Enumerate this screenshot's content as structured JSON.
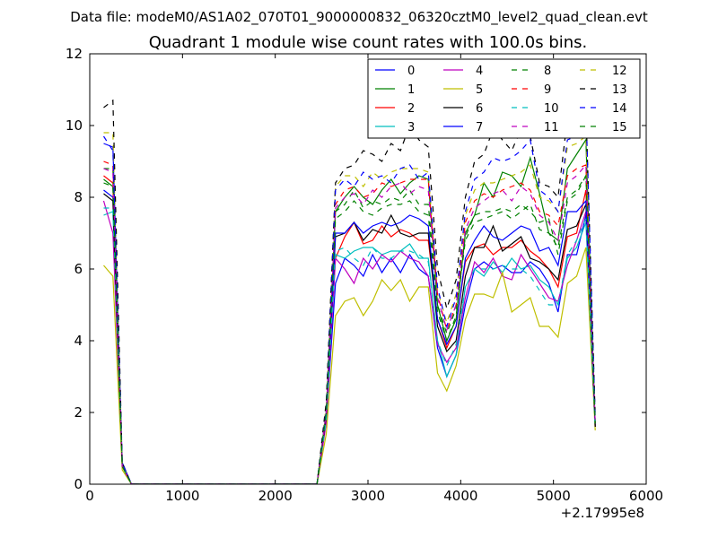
{
  "chart_data": {
    "type": "line",
    "suptitle": "Data file: modeM0/AS1A02_070T01_9000000832_06320cztM0_level2_quad_clean.evt",
    "title": "Quadrant 1 module wise count rates with 100.0s bins.",
    "xlabel": "",
    "ylabel": "",
    "x_offset_label": "+2.17995e8",
    "xlim": [
      0,
      6000
    ],
    "ylim": [
      0,
      12
    ],
    "xticks": [
      0,
      1000,
      2000,
      3000,
      4000,
      5000,
      6000
    ],
    "yticks": [
      0,
      2,
      4,
      6,
      8,
      10,
      12
    ],
    "x": [
      150,
      250,
      350,
      450,
      550,
      650,
      750,
      850,
      950,
      1050,
      1150,
      1250,
      1350,
      1450,
      1550,
      1650,
      1750,
      1850,
      1950,
      2050,
      2150,
      2250,
      2350,
      2450,
      2550,
      2650,
      2750,
      2850,
      2950,
      3050,
      3150,
      3250,
      3350,
      3450,
      3550,
      3650,
      3750,
      3850,
      3950,
      4050,
      4150,
      4250,
      4350,
      4450,
      4550,
      4650,
      4750,
      4850,
      4950,
      5050,
      5150,
      5250,
      5350,
      5450
    ],
    "legend_position": "top-right",
    "series": [
      {
        "name": "0",
        "color": "#0000ff",
        "dash": "solid",
        "values": [
          8.2,
          8.0,
          0.5,
          0,
          0,
          0,
          0,
          0,
          0,
          0,
          0,
          0,
          0,
          0,
          0,
          0,
          0,
          0,
          0,
          0,
          0,
          0,
          0,
          0,
          1.8,
          5.6,
          6.3,
          6.1,
          5.8,
          6.4,
          5.9,
          6.3,
          5.9,
          6.4,
          6.0,
          5.8,
          3.8,
          3.0,
          3.6,
          5.0,
          6.0,
          6.2,
          6.0,
          6.1,
          5.9,
          5.9,
          6.2,
          6.0,
          5.6,
          4.8,
          6.4,
          6.4,
          7.5,
          1.7
        ]
      },
      {
        "name": "1",
        "color": "#008000",
        "dash": "solid",
        "values": [
          8.5,
          8.3,
          0.5,
          0,
          0,
          0,
          0,
          0,
          0,
          0,
          0,
          0,
          0,
          0,
          0,
          0,
          0,
          0,
          0,
          0,
          0,
          0,
          0,
          0,
          2.0,
          7.6,
          8.0,
          8.3,
          8.0,
          7.8,
          8.2,
          8.5,
          8.1,
          8.4,
          8.6,
          8.5,
          5.0,
          4.0,
          4.6,
          7.0,
          7.5,
          8.4,
          8.0,
          8.7,
          8.6,
          8.3,
          9.1,
          8.1,
          7.0,
          6.8,
          8.8,
          9.2,
          9.6,
          1.6
        ]
      },
      {
        "name": "2",
        "color": "#ff0000",
        "dash": "solid",
        "values": [
          8.6,
          8.4,
          0.5,
          0,
          0,
          0,
          0,
          0,
          0,
          0,
          0,
          0,
          0,
          0,
          0,
          0,
          0,
          0,
          0,
          0,
          0,
          0,
          0,
          0,
          1.9,
          6.3,
          6.9,
          7.3,
          6.7,
          6.8,
          7.2,
          6.9,
          7.1,
          7.0,
          6.8,
          6.8,
          4.6,
          3.8,
          4.4,
          6.2,
          6.6,
          6.7,
          6.4,
          6.6,
          6.6,
          6.8,
          6.5,
          6.3,
          6.0,
          5.5,
          6.9,
          7.0,
          8.2,
          1.6
        ]
      },
      {
        "name": "3",
        "color": "#00bfbf",
        "dash": "solid",
        "values": [
          7.5,
          7.6,
          0.5,
          0,
          0,
          0,
          0,
          0,
          0,
          0,
          0,
          0,
          0,
          0,
          0,
          0,
          0,
          0,
          0,
          0,
          0,
          0,
          0,
          0,
          1.8,
          6.4,
          6.3,
          6.5,
          6.6,
          6.6,
          6.4,
          6.5,
          6.5,
          6.7,
          6.3,
          6.3,
          4.0,
          3.0,
          3.6,
          5.5,
          6.0,
          5.8,
          6.2,
          5.9,
          6.3,
          6.0,
          6.1,
          5.7,
          5.5,
          5.0,
          6.3,
          6.6,
          7.3,
          1.6
        ]
      },
      {
        "name": "4",
        "color": "#bf00bf",
        "dash": "solid",
        "values": [
          7.9,
          7.0,
          0.5,
          0,
          0,
          0,
          0,
          0,
          0,
          0,
          0,
          0,
          0,
          0,
          0,
          0,
          0,
          0,
          0,
          0,
          0,
          0,
          0,
          0,
          1.7,
          6.3,
          6.0,
          5.6,
          6.3,
          6.0,
          6.4,
          6.2,
          6.5,
          6.3,
          6.2,
          5.8,
          3.9,
          3.4,
          3.8,
          5.2,
          6.2,
          5.9,
          6.3,
          5.8,
          5.7,
          6.4,
          6.0,
          5.6,
          5.2,
          5.1,
          6.1,
          6.8,
          7.6,
          1.6
        ]
      },
      {
        "name": "5",
        "color": "#bfbf00",
        "dash": "solid",
        "values": [
          6.1,
          5.8,
          0.4,
          0,
          0,
          0,
          0,
          0,
          0,
          0,
          0,
          0,
          0,
          0,
          0,
          0,
          0,
          0,
          0,
          0,
          0,
          0,
          0,
          0,
          1.4,
          4.7,
          5.1,
          5.2,
          4.7,
          5.1,
          5.7,
          5.4,
          5.7,
          5.1,
          5.5,
          5.5,
          3.1,
          2.6,
          3.3,
          4.6,
          5.3,
          5.3,
          5.2,
          5.9,
          4.8,
          5.0,
          5.2,
          4.4,
          4.4,
          4.1,
          5.6,
          5.8,
          6.6,
          1.5
        ]
      },
      {
        "name": "6",
        "color": "#000000",
        "dash": "solid",
        "values": [
          8.1,
          7.9,
          0.5,
          0,
          0,
          0,
          0,
          0,
          0,
          0,
          0,
          0,
          0,
          0,
          0,
          0,
          0,
          0,
          0,
          0,
          0,
          0,
          0,
          0,
          1.9,
          6.9,
          7.0,
          7.3,
          6.8,
          7.1,
          7.0,
          7.5,
          7.0,
          6.9,
          7.0,
          7.0,
          4.4,
          3.7,
          4.0,
          5.8,
          6.6,
          6.6,
          7.2,
          6.5,
          6.7,
          6.9,
          6.3,
          6.2,
          6.0,
          5.7,
          7.1,
          7.2,
          7.8,
          1.6
        ]
      },
      {
        "name": "7",
        "color": "#0000ff",
        "dash": "solid",
        "values": [
          9.5,
          9.4,
          0.6,
          0,
          0,
          0,
          0,
          0,
          0,
          0,
          0,
          0,
          0,
          0,
          0,
          0,
          0,
          0,
          0,
          0,
          0,
          0,
          0,
          0,
          2.0,
          7.0,
          7.0,
          7.3,
          7.0,
          7.2,
          7.3,
          7.2,
          7.3,
          7.5,
          7.4,
          7.2,
          4.6,
          3.9,
          4.4,
          6.3,
          6.8,
          7.2,
          6.9,
          6.8,
          7.0,
          7.2,
          7.1,
          6.5,
          6.6,
          6.1,
          7.6,
          7.6,
          7.9,
          1.7
        ]
      },
      {
        "name": "8",
        "color": "#008000",
        "dash": "dashed",
        "values": [
          8.8,
          8.8,
          0.5,
          0,
          0,
          0,
          0,
          0,
          0,
          0,
          0,
          0,
          0,
          0,
          0,
          0,
          0,
          0,
          0,
          0,
          0,
          0,
          0,
          0,
          2.0,
          7.6,
          7.8,
          8.2,
          7.7,
          7.9,
          7.8,
          8.0,
          7.9,
          8.2,
          7.8,
          7.8,
          5.0,
          4.2,
          4.9,
          6.9,
          7.5,
          7.6,
          7.6,
          7.7,
          7.6,
          7.8,
          7.6,
          7.3,
          7.4,
          6.4,
          7.9,
          8.1,
          8.6,
          1.7
        ]
      },
      {
        "name": "9",
        "color": "#ff0000",
        "dash": "dashed",
        "values": [
          9.0,
          8.9,
          0.5,
          0,
          0,
          0,
          0,
          0,
          0,
          0,
          0,
          0,
          0,
          0,
          0,
          0,
          0,
          0,
          0,
          0,
          0,
          0,
          0,
          0,
          2.1,
          7.8,
          8.2,
          8.3,
          8.0,
          8.1,
          8.4,
          8.3,
          8.4,
          8.5,
          8.5,
          8.5,
          5.3,
          4.3,
          5.0,
          7.3,
          7.9,
          8.1,
          8.0,
          8.2,
          8.3,
          8.4,
          8.2,
          7.6,
          7.5,
          7.2,
          8.6,
          8.8,
          8.9,
          1.7
        ]
      },
      {
        "name": "10",
        "color": "#00bfbf",
        "dash": "dashed",
        "values": [
          7.7,
          7.7,
          0.5,
          0,
          0,
          0,
          0,
          0,
          0,
          0,
          0,
          0,
          0,
          0,
          0,
          0,
          0,
          0,
          0,
          0,
          0,
          0,
          0,
          0,
          1.8,
          6.5,
          6.6,
          6.3,
          6.1,
          6.6,
          6.3,
          6.3,
          6.5,
          6.5,
          6.4,
          6.2,
          4.0,
          3.3,
          3.9,
          5.5,
          6.0,
          6.0,
          6.0,
          6.1,
          6.0,
          6.0,
          5.8,
          5.4,
          5.0,
          5.0,
          6.4,
          6.8,
          7.4,
          1.6
        ]
      },
      {
        "name": "11",
        "color": "#bf00bf",
        "dash": "dashed",
        "values": [
          8.8,
          8.7,
          0.5,
          0,
          0,
          0,
          0,
          0,
          0,
          0,
          0,
          0,
          0,
          0,
          0,
          0,
          0,
          0,
          0,
          0,
          0,
          0,
          0,
          0,
          2.0,
          7.7,
          8.0,
          8.1,
          7.8,
          8.2,
          8.0,
          8.3,
          8.4,
          8.1,
          8.3,
          8.2,
          5.2,
          4.3,
          5.0,
          7.1,
          7.7,
          7.9,
          8.1,
          8.2,
          7.9,
          8.3,
          8.1,
          7.5,
          7.3,
          6.8,
          8.4,
          8.6,
          8.9,
          1.7
        ]
      },
      {
        "name": "12",
        "color": "#bfbf00",
        "dash": "dashed",
        "values": [
          9.8,
          9.8,
          0.6,
          0,
          0,
          0,
          0,
          0,
          0,
          0,
          0,
          0,
          0,
          0,
          0,
          0,
          0,
          0,
          0,
          0,
          0,
          0,
          0,
          0,
          2.2,
          8.3,
          8.6,
          8.6,
          8.3,
          8.7,
          8.5,
          8.7,
          8.8,
          8.8,
          8.8,
          8.7,
          5.4,
          4.5,
          5.3,
          7.5,
          8.2,
          8.4,
          8.4,
          8.5,
          8.6,
          8.7,
          8.9,
          8.0,
          7.9,
          7.6,
          9.4,
          9.5,
          9.7,
          1.8
        ]
      },
      {
        "name": "13",
        "color": "#000000",
        "dash": "dashed",
        "values": [
          10.5,
          10.7,
          0.6,
          0,
          0,
          0,
          0,
          0,
          0,
          0,
          0,
          0,
          0,
          0,
          0,
          0,
          0,
          0,
          0,
          0,
          0,
          0,
          0,
          0,
          2.3,
          8.4,
          8.8,
          8.9,
          9.3,
          9.2,
          9.0,
          9.5,
          9.3,
          10.0,
          9.6,
          9.4,
          6.0,
          4.9,
          5.7,
          8.0,
          9.0,
          9.2,
          9.9,
          9.6,
          9.3,
          9.9,
          9.7,
          8.4,
          8.3,
          8.0,
          10.2,
          9.8,
          10.5,
          1.9
        ]
      },
      {
        "name": "14",
        "color": "#0000ff",
        "dash": "dashed",
        "values": [
          9.7,
          9.3,
          0.6,
          0,
          0,
          0,
          0,
          0,
          0,
          0,
          0,
          0,
          0,
          0,
          0,
          0,
          0,
          0,
          0,
          0,
          0,
          0,
          0,
          0,
          2.1,
          8.2,
          8.5,
          8.3,
          8.7,
          8.5,
          8.6,
          8.4,
          8.8,
          8.9,
          8.5,
          8.7,
          5.5,
          4.4,
          5.2,
          7.6,
          8.5,
          8.7,
          9.1,
          9.0,
          9.1,
          9.3,
          9.6,
          8.2,
          8.0,
          7.6,
          9.6,
          9.7,
          10.5,
          1.8
        ]
      },
      {
        "name": "15",
        "color": "#008000",
        "dash": "dashed",
        "values": [
          8.4,
          8.3,
          0.5,
          0,
          0,
          0,
          0,
          0,
          0,
          0,
          0,
          0,
          0,
          0,
          0,
          0,
          0,
          0,
          0,
          0,
          0,
          0,
          0,
          0,
          2.0,
          7.4,
          7.6,
          7.9,
          7.6,
          7.5,
          7.7,
          7.8,
          7.8,
          7.9,
          7.6,
          7.5,
          4.8,
          4.0,
          4.7,
          6.8,
          7.3,
          7.4,
          7.5,
          7.6,
          7.4,
          7.6,
          7.8,
          7.1,
          7.0,
          6.6,
          8.0,
          8.2,
          8.6,
          1.7
        ]
      }
    ]
  }
}
